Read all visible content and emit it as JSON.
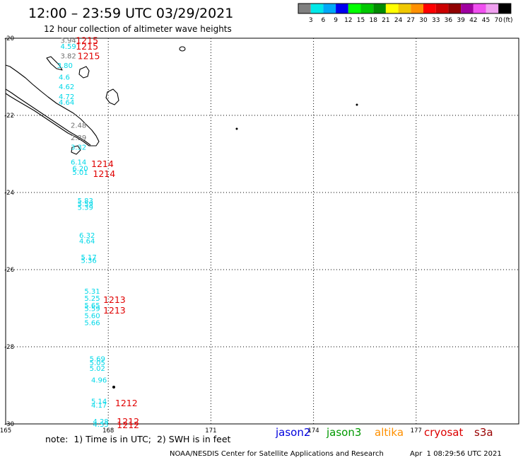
{
  "header": {
    "title": "12:00 – 23:59 UTC 03/29/2021",
    "subtitle": "12 hour collection of altimeter wave heights"
  },
  "color_scale": {
    "labels": [
      "3",
      "6",
      "9",
      "12",
      "15",
      "18",
      "21",
      "24",
      "27",
      "30",
      "33",
      "36",
      "39",
      "42",
      "45",
      "70"
    ],
    "unit": "(ft)",
    "colors": [
      "#808080",
      "#00e8e8",
      "#00a8f8",
      "#0000f0",
      "#00ff00",
      "#00c800",
      "#008c00",
      "#ffff00",
      "#f0c800",
      "#ff9000",
      "#ff0000",
      "#cc0000",
      "#900000",
      "#a000a0",
      "#f050f0",
      "#f0a0f0",
      "#000000"
    ]
  },
  "map": {
    "lon_labels": [
      {
        "lon": 165,
        "label": "165"
      },
      {
        "lon": 168,
        "label": "168"
      },
      {
        "lon": 171,
        "label": "171"
      },
      {
        "lon": 174,
        "label": "174"
      },
      {
        "lon": 177,
        "label": "177"
      }
    ],
    "lat_labels": [
      {
        "lat": -20,
        "label": "-20"
      },
      {
        "lat": -22,
        "label": "-22"
      },
      {
        "lat": -24,
        "label": "-24"
      },
      {
        "lat": -26,
        "label": "-26"
      },
      {
        "lat": -28,
        "label": "-28"
      },
      {
        "lat": -30,
        "label": "-30"
      }
    ],
    "lon_range": [
      165,
      180
    ],
    "lat_range": [
      -30,
      -20
    ],
    "grid": true
  },
  "observations": [
    {
      "v": "3.94",
      "lon": 166.6,
      "lat": -20.05,
      "c": "gray"
    },
    {
      "v": "4.59",
      "lon": 166.6,
      "lat": -20.2,
      "c": "cyan"
    },
    {
      "v": "3.82",
      "lon": 166.6,
      "lat": -20.45,
      "c": "gray"
    },
    {
      "v": "3.80",
      "lon": 166.5,
      "lat": -20.7,
      "c": "cyan"
    },
    {
      "v": "4.6",
      "lon": 166.55,
      "lat": -21.0,
      "c": "cyan"
    },
    {
      "v": "4.62",
      "lon": 166.55,
      "lat": -21.25,
      "c": "cyan"
    },
    {
      "v": "4.72",
      "lon": 166.55,
      "lat": -21.5,
      "c": "cyan"
    },
    {
      "v": "4.64",
      "lon": 166.55,
      "lat": -21.65,
      "c": "cyan"
    },
    {
      "v": "2.48",
      "lon": 166.9,
      "lat": -22.25,
      "c": "gray"
    },
    {
      "v": "2.39",
      "lon": 166.9,
      "lat": -22.57,
      "c": "gray"
    },
    {
      "v": "3.32",
      "lon": 166.9,
      "lat": -22.82,
      "c": "cyan"
    },
    {
      "v": "6.14",
      "lon": 166.9,
      "lat": -23.2,
      "c": "cyan"
    },
    {
      "v": "6.20",
      "lon": 166.95,
      "lat": -23.37,
      "c": "cyan"
    },
    {
      "v": "5.01",
      "lon": 166.95,
      "lat": -23.47,
      "c": "cyan"
    },
    {
      "v": "5.83",
      "lon": 167.1,
      "lat": -24.2,
      "c": "cyan"
    },
    {
      "v": "5.59",
      "lon": 167.1,
      "lat": -24.28,
      "c": "cyan"
    },
    {
      "v": "5.39",
      "lon": 167.1,
      "lat": -24.38,
      "c": "cyan"
    },
    {
      "v": "6.32",
      "lon": 167.15,
      "lat": -25.1,
      "c": "cyan"
    },
    {
      "v": "4.64",
      "lon": 167.15,
      "lat": -25.25,
      "c": "cyan"
    },
    {
      "v": "5.17",
      "lon": 167.2,
      "lat": -25.67,
      "c": "cyan"
    },
    {
      "v": "5.36",
      "lon": 167.2,
      "lat": -25.75,
      "c": "cyan"
    },
    {
      "v": "5.31",
      "lon": 167.3,
      "lat": -26.55,
      "c": "cyan"
    },
    {
      "v": "5.25",
      "lon": 167.3,
      "lat": -26.73,
      "c": "cyan"
    },
    {
      "v": "5.65",
      "lon": 167.3,
      "lat": -26.92,
      "c": "cyan"
    },
    {
      "v": "5.59",
      "lon": 167.3,
      "lat": -27.0,
      "c": "cyan"
    },
    {
      "v": "5.60",
      "lon": 167.3,
      "lat": -27.18,
      "c": "cyan"
    },
    {
      "v": "5.66",
      "lon": 167.3,
      "lat": -27.37,
      "c": "cyan"
    },
    {
      "v": "5.69",
      "lon": 167.45,
      "lat": -28.3,
      "c": "cyan"
    },
    {
      "v": "5.05",
      "lon": 167.45,
      "lat": -28.4,
      "c": "cyan"
    },
    {
      "v": "5.02",
      "lon": 167.45,
      "lat": -28.55,
      "c": "cyan"
    },
    {
      "v": "4.96",
      "lon": 167.5,
      "lat": -28.85,
      "c": "cyan"
    },
    {
      "v": "5.14",
      "lon": 167.5,
      "lat": -29.4,
      "c": "cyan"
    },
    {
      "v": "4.17",
      "lon": 167.5,
      "lat": -29.5,
      "c": "cyan"
    },
    {
      "v": "4.28",
      "lon": 167.55,
      "lat": -29.93,
      "c": "cyan"
    },
    {
      "v": "4.33",
      "lon": 167.55,
      "lat": -30.0,
      "c": "cyan"
    }
  ],
  "pass_times": [
    {
      "t": "1215",
      "lon": 167.05,
      "lat": -20.05
    },
    {
      "t": "1215",
      "lon": 167.05,
      "lat": -20.2
    },
    {
      "t": "1215",
      "lon": 167.1,
      "lat": -20.45
    },
    {
      "t": "1214",
      "lon": 167.5,
      "lat": -23.25
    },
    {
      "t": "1214",
      "lon": 167.55,
      "lat": -23.5
    },
    {
      "t": "1213",
      "lon": 167.85,
      "lat": -26.77
    },
    {
      "t": "1213",
      "lon": 167.85,
      "lat": -27.05
    },
    {
      "t": "1212",
      "lon": 168.2,
      "lat": -29.45
    },
    {
      "t": "1212",
      "lon": 168.25,
      "lat": -29.93
    },
    {
      "t": "1212",
      "lon": 168.25,
      "lat": -30.02
    }
  ],
  "footer": {
    "note": "note:  1) Time is in UTC;  2) SWH is in feet",
    "legend": [
      {
        "name": "jason2",
        "color": "#0000dd"
      },
      {
        "name": "jason3",
        "color": "#009900"
      },
      {
        "name": "altika",
        "color": "#ff9000"
      },
      {
        "name": "cryosat",
        "color": "#dd0000"
      },
      {
        "name": "s3a",
        "color": "#990000"
      }
    ],
    "credit": "NOAA/NESDIS Center for Satellite Applications and Research",
    "timestamp": "Apr  1 08:29:56 UTC 2021"
  }
}
